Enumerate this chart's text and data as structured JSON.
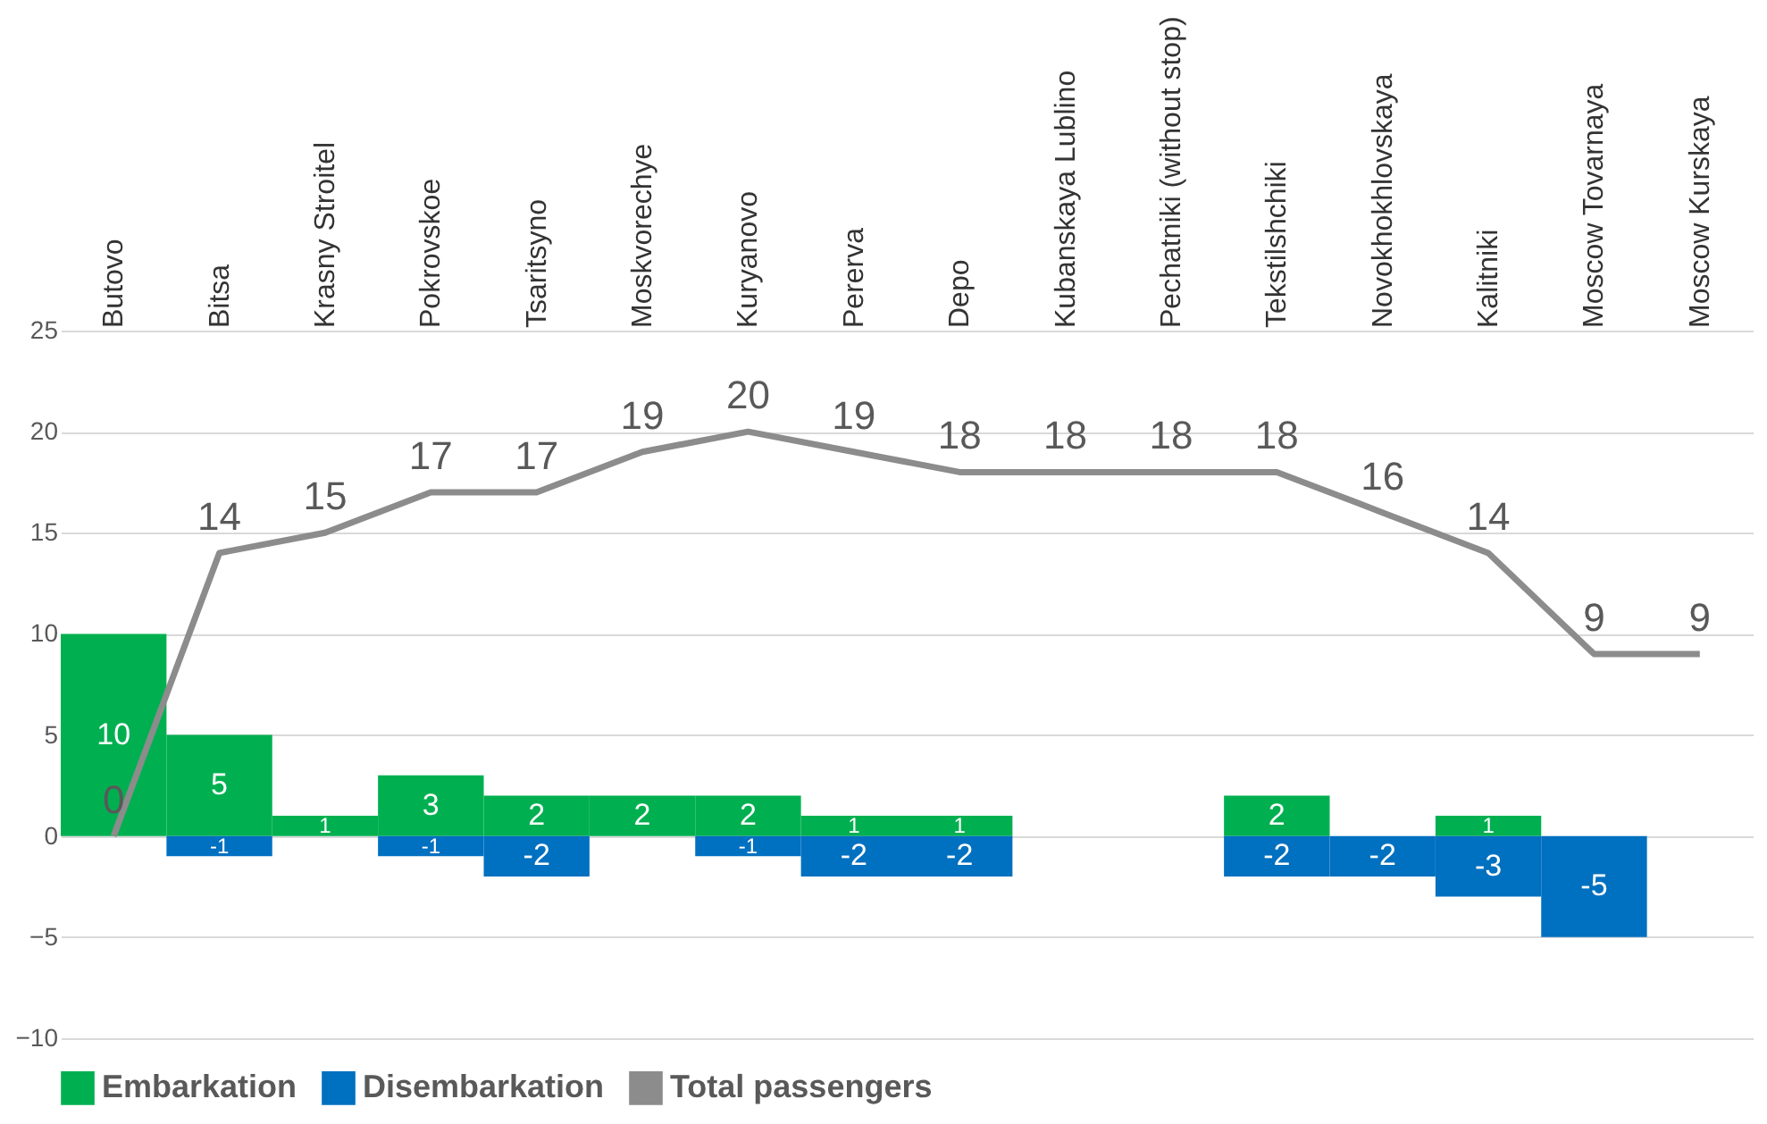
{
  "chart_data": {
    "type": "bar",
    "categories": [
      "Butovo",
      "Bitsa",
      "Krasny Stroitel",
      "Pokrovskoe",
      "Tsaritsyno",
      "Moskvorechye",
      "Kuryanovo",
      "Pererva",
      "Depo",
      "Kubanskaya Lublino",
      "Pechatniki (without stop)",
      "Tekstilshchiki",
      "Novokhokhlovskaya",
      "Kalitniki",
      "Moscow Tovarnaya",
      "Moscow Kurskaya"
    ],
    "series": [
      {
        "name": "Embarkation",
        "color": "#00b050",
        "values": [
          10,
          5,
          1,
          3,
          2,
          2,
          2,
          1,
          1,
          null,
          null,
          2,
          null,
          1,
          null,
          null
        ]
      },
      {
        "name": "Disembarkation",
        "color": "#0070c0",
        "values": [
          null,
          -1,
          null,
          -1,
          -2,
          null,
          -1,
          -2,
          -2,
          null,
          null,
          -2,
          -2,
          -3,
          -5,
          null
        ]
      },
      {
        "name": "Total passengers",
        "type": "line",
        "color": "#8c8c8c",
        "values": [
          0,
          14,
          15,
          17,
          17,
          19,
          20,
          19,
          18,
          18,
          18,
          18,
          16,
          14,
          9,
          9
        ]
      }
    ],
    "ylim": [
      -10,
      25
    ],
    "yticks": [
      -10,
      -5,
      0,
      5,
      10,
      15,
      20,
      25
    ],
    "stacked": true,
    "grid": "y",
    "legend": "bottom",
    "data_labels": true,
    "marker": "none"
  }
}
